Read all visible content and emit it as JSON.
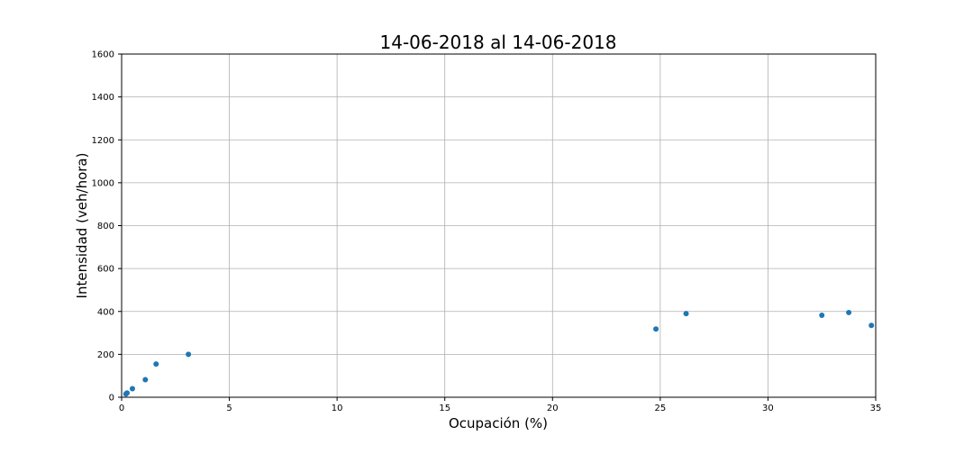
{
  "chart_data": {
    "type": "scatter",
    "title": "14-06-2018 al 14-06-2018",
    "xlabel": "Ocupación (%)",
    "ylabel": "Intensidad (veh/hora)",
    "xlim": [
      0,
      35
    ],
    "ylim": [
      0,
      1600
    ],
    "xticks": [
      0,
      5,
      10,
      15,
      20,
      25,
      30,
      35
    ],
    "yticks": [
      0,
      200,
      400,
      600,
      800,
      1000,
      1200,
      1400,
      1600
    ],
    "grid": true,
    "marker_color": "#1f77b4",
    "points": [
      {
        "x": 0.2,
        "y": 15
      },
      {
        "x": 0.25,
        "y": 20
      },
      {
        "x": 0.5,
        "y": 40
      },
      {
        "x": 1.1,
        "y": 82
      },
      {
        "x": 1.6,
        "y": 155
      },
      {
        "x": 3.1,
        "y": 200
      },
      {
        "x": 24.8,
        "y": 318
      },
      {
        "x": 26.2,
        "y": 390
      },
      {
        "x": 32.5,
        "y": 382
      },
      {
        "x": 33.75,
        "y": 395
      },
      {
        "x": 34.8,
        "y": 335
      }
    ]
  }
}
